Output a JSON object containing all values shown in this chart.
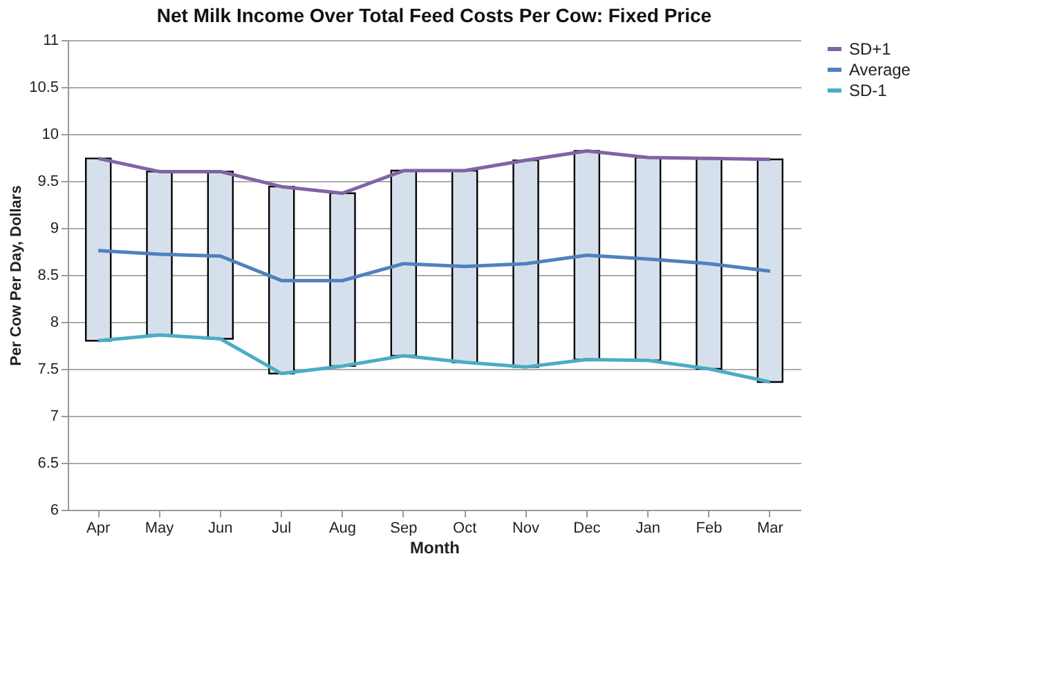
{
  "chart_data": {
    "type": "line",
    "title": "Net Milk Income Over Total Feed Costs Per Cow: Fixed Price",
    "xlabel": "Month",
    "ylabel": "Per Cow Per Day, Dollars",
    "categories": [
      "Apr",
      "May",
      "Jun",
      "Jul",
      "Aug",
      "Sep",
      "Oct",
      "Nov",
      "Dec",
      "Jan",
      "Feb",
      "Mar"
    ],
    "series": [
      {
        "type": "bar",
        "color": "#d6e0ec",
        "base": [
          7.8,
          7.86,
          7.82,
          7.45,
          7.53,
          7.64,
          7.57,
          7.52,
          7.6,
          7.59,
          7.5,
          7.36
        ],
        "values": [
          1.94,
          1.74,
          1.78,
          1.99,
          1.84,
          1.97,
          2.04,
          2.2,
          2.22,
          2.16,
          2.24,
          2.37
        ]
      },
      {
        "type": "line",
        "name": "SD+1",
        "color": "#8064a2",
        "values": [
          9.74,
          9.6,
          9.6,
          9.44,
          9.37,
          9.61,
          9.61,
          9.72,
          9.82,
          9.75,
          9.74,
          9.73
        ]
      },
      {
        "type": "line",
        "name": "Average",
        "color": "#4f81bd",
        "values": [
          8.76,
          8.72,
          8.7,
          8.44,
          8.44,
          8.62,
          8.59,
          8.62,
          8.71,
          8.67,
          8.62,
          8.54
        ]
      },
      {
        "type": "line",
        "name": "SD-1",
        "color": "#4bacc6",
        "values": [
          7.8,
          7.86,
          7.82,
          7.45,
          7.53,
          7.64,
          7.57,
          7.52,
          7.6,
          7.59,
          7.5,
          7.36
        ]
      }
    ],
    "ylim": [
      6,
      11
    ],
    "yticks": [
      6,
      6.5,
      7,
      7.5,
      8,
      8.5,
      9,
      9.5,
      10,
      10.5,
      11
    ],
    "grid": "y",
    "legend": "right",
    "marker": "none",
    "line_style": "solid"
  }
}
